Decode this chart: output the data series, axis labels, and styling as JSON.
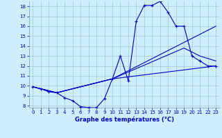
{
  "xlabel": "Graphe des températures (°C)",
  "background_color": "#cceeff",
  "grid_color": "#99cccc",
  "line_color": "#0000cc",
  "xlim": [
    -0.5,
    23.5
  ],
  "ylim": [
    7.8,
    18.5
  ],
  "yticks": [
    8,
    9,
    10,
    11,
    12,
    13,
    14,
    15,
    16,
    17,
    18
  ],
  "xticks": [
    0,
    1,
    2,
    3,
    4,
    5,
    6,
    7,
    8,
    9,
    10,
    11,
    12,
    13,
    14,
    15,
    16,
    17,
    18,
    19,
    20,
    21,
    22,
    23
  ],
  "line1_x": [
    0,
    1,
    2,
    3,
    4,
    5,
    6,
    7,
    8,
    9,
    10,
    11,
    12,
    13,
    14,
    15,
    16,
    17,
    18,
    19,
    20,
    21,
    22,
    23
  ],
  "line1_y": [
    9.9,
    9.7,
    9.4,
    9.3,
    8.8,
    8.5,
    7.9,
    7.8,
    7.8,
    8.7,
    10.7,
    13.0,
    10.5,
    16.5,
    18.1,
    18.1,
    18.5,
    17.4,
    16.0,
    16.0,
    13.0,
    12.5,
    12.0,
    12.0
  ],
  "line2_x": [
    0,
    3,
    10,
    23
  ],
  "line2_y": [
    9.9,
    9.3,
    10.7,
    12.0
  ],
  "line3_x": [
    0,
    3,
    10,
    23
  ],
  "line3_y": [
    9.9,
    9.3,
    10.7,
    16.0
  ],
  "line4_x": [
    0,
    3,
    10,
    19,
    21,
    23
  ],
  "line4_y": [
    9.9,
    9.3,
    10.7,
    13.8,
    13.0,
    12.5
  ],
  "xlabel_fontsize": 6.0,
  "tick_fontsize": 5.0
}
